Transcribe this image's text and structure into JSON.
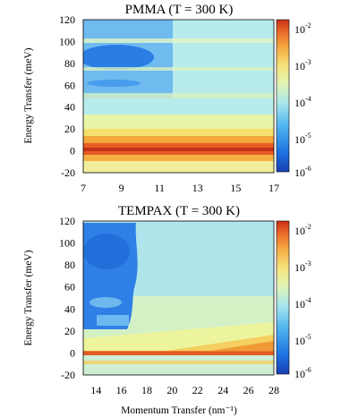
{
  "chart_data": [
    {
      "type": "heatmap",
      "title": "PMMA (T = 300 K)",
      "xlabel": "",
      "ylabel": "Energy Transfer (meV)",
      "xlim": [
        7,
        17
      ],
      "ylim": [
        -20,
        120
      ],
      "x_ticks": [
        "7",
        "9",
        "11",
        "13",
        "15",
        "17"
      ],
      "y_ticks": [
        "-20",
        "0",
        "20",
        "40",
        "60",
        "80",
        "100",
        "120"
      ],
      "colorbar": {
        "scale": "log",
        "range": [
          1e-06,
          0.01
        ],
        "ticks": [
          {
            "base": "10",
            "exp": "-2"
          },
          {
            "base": "10",
            "exp": "-3"
          },
          {
            "base": "10",
            "exp": "-4"
          },
          {
            "base": "10",
            "exp": "-5"
          },
          {
            "base": "10",
            "exp": "-6"
          }
        ]
      },
      "features": [
        {
          "feature": "elastic peak",
          "energy_meV": 0,
          "log10_intensity": -2.1
        },
        {
          "feature": "inelastic band",
          "energy_meV": 22,
          "log10_intensity": -3.6
        },
        {
          "feature": "inelastic band",
          "energy_meV": 45,
          "log10_intensity": -4.5
        },
        {
          "feature": "inelastic band",
          "energy_meV": 70,
          "log10_intensity": -4.3
        },
        {
          "feature": "inelastic band",
          "energy_meV": 100,
          "log10_intensity": -4.2
        }
      ]
    },
    {
      "type": "heatmap",
      "title": "TEMPAX (T = 300 K)",
      "xlabel": "Momentum Transfer (nm⁻¹)",
      "ylabel": "Energy Transfer (meV)",
      "xlim": [
        13,
        28
      ],
      "ylim": [
        -20,
        120
      ],
      "x_ticks": [
        "14",
        "16",
        "18",
        "20",
        "22",
        "24",
        "26",
        "28"
      ],
      "y_ticks": [
        "-20",
        "0",
        "20",
        "40",
        "60",
        "80",
        "100",
        "120"
      ],
      "colorbar": {
        "scale": "log",
        "range": [
          1e-06,
          0.01
        ],
        "ticks": [
          {
            "base": "10",
            "exp": "-2"
          },
          {
            "base": "10",
            "exp": "-3"
          },
          {
            "base": "10",
            "exp": "-4"
          },
          {
            "base": "10",
            "exp": "-5"
          },
          {
            "base": "10",
            "exp": "-6"
          }
        ]
      },
      "features": [
        {
          "feature": "elastic line",
          "energy_meV": 0,
          "log10_intensity": -2.4
        },
        {
          "feature": "inelastic band",
          "energy_meV": 12,
          "log10_intensity": -3.3
        },
        {
          "feature": "low-Q void",
          "energy_meV": 70,
          "log10_intensity": -5.5
        }
      ]
    }
  ]
}
